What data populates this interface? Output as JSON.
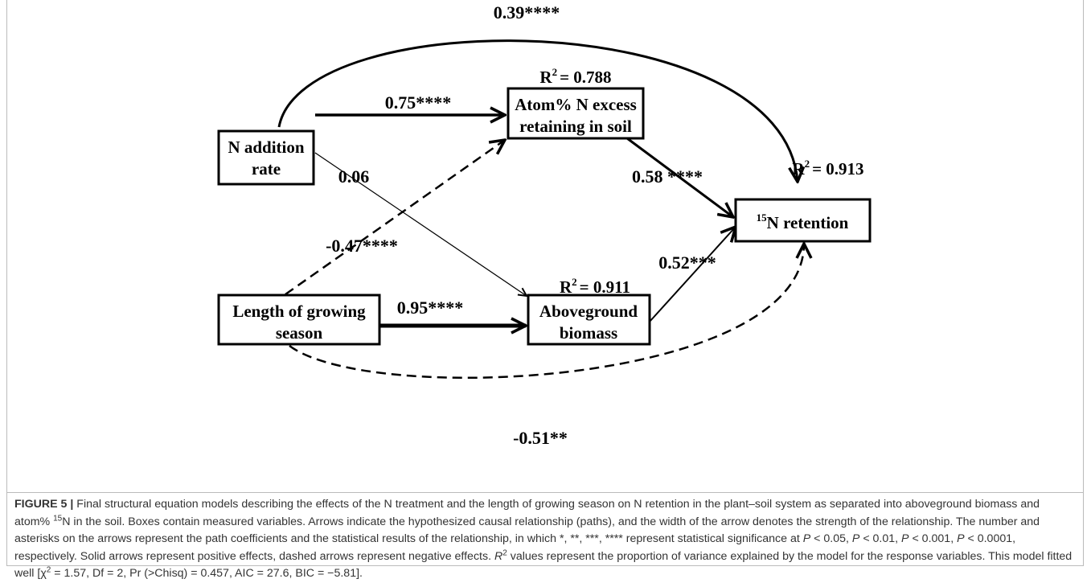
{
  "diagram": {
    "nodes": [
      {
        "lines": [
          "N addition",
          "rate"
        ]
      },
      {
        "lines": [
          "Atom% N excess",
          "retaining in soil"
        ]
      },
      {
        "lines": [
          "Length of growing",
          "season"
        ]
      },
      {
        "lines": [
          "Aboveground",
          "biomass"
        ]
      },
      {
        "isotope": "15",
        "label": "N retention"
      }
    ],
    "path_coefficients": [
      "0.39****",
      "0.75****",
      "0.06",
      "-0.47****",
      "0.95****",
      "0.58 ****",
      "0.52***",
      "-0.51**"
    ],
    "r_squared": [
      {
        "symbol": "R",
        "exponent": "2",
        "value": "= 0.788"
      },
      {
        "symbol": "R",
        "exponent": "2",
        "value": "= 0.913"
      },
      {
        "symbol": "R",
        "exponent": "2",
        "value": "= 0.911"
      }
    ]
  },
  "caption": [
    "FIGURE 5 |",
    " Final structural equation models describing the effects of the N treatment and the length of growing season on N retention in the plant–soil system as separated into aboveground biomass and atom% ",
    "15",
    "N in the soil. Boxes contain measured variables. Arrows indicate the hypothesized causal relationship (paths), and the width of the arrow denotes the strength of the relationship. The number and asterisks on the arrows represent the path coefficients and the statistical results of the relationship, in which *, **, ***, **** represent statistical significance at ",
    "P",
    " < 0.05, ",
    "P",
    " < 0.01, ",
    "P",
    " < 0.001, ",
    "P",
    " < 0.0001, respectively. Solid arrows represent positive effects, dashed arrows represent negative effects. ",
    "R",
    "2",
    " values represent the proportion of variance explained by the model for the response variables. This model fitted well [χ",
    "2",
    " = 1.57, Df = 2, Pr (>Chisq) = 0.457, AIC = 27.6, BIC = −5.81]."
  ]
}
